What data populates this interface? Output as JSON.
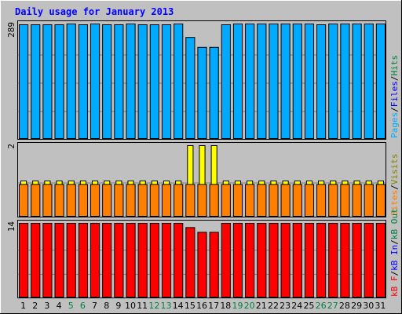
{
  "chart_data": {
    "type": "bar",
    "title": "Daily usage for January 2013",
    "categories": [
      "1",
      "2",
      "3",
      "4",
      "5",
      "6",
      "7",
      "8",
      "9",
      "10",
      "11",
      "12",
      "13",
      "14",
      "15",
      "16",
      "17",
      "18",
      "19",
      "20",
      "21",
      "22",
      "23",
      "24",
      "25",
      "26",
      "27",
      "28",
      "29",
      "30",
      "31"
    ],
    "weekend_days": [
      "5",
      "6",
      "12",
      "13",
      "19",
      "20",
      "26",
      "27"
    ],
    "panels": [
      {
        "id": "hits",
        "ymax_label": "289",
        "ymax": 289,
        "series": [
          {
            "name": "Hits",
            "color": "#00aaff",
            "values": [
              287,
              287,
              287,
              287,
              289,
              287,
              289,
              287,
              287,
              289,
              287,
              287,
              287,
              289,
              255,
              230,
              230,
              287,
              289,
              289,
              289,
              289,
              289,
              289,
              289,
              287,
              289,
              289,
              289,
              289,
              289
            ]
          }
        ],
        "legend": [
          {
            "text": "Pages",
            "color": "#00aaff"
          },
          {
            "text": "/",
            "color": "#000000"
          },
          {
            "text": "Files",
            "color": "#0000ff"
          },
          {
            "text": "/",
            "color": "#000000"
          },
          {
            "text": "Hits",
            "color": "#008040"
          }
        ]
      },
      {
        "id": "visits",
        "ymax_label": "2",
        "ymax": 2,
        "series": [
          {
            "name": "Visits",
            "color": "#ffff00",
            "values": [
              1,
              1,
              1,
              1,
              1,
              1,
              1,
              1,
              1,
              1,
              1,
              1,
              1,
              1,
              2,
              2,
              2,
              1,
              1,
              1,
              1,
              1,
              1,
              1,
              1,
              1,
              1,
              1,
              1,
              1,
              1
            ]
          },
          {
            "name": "Sites",
            "color": "#ff8000",
            "values": [
              1,
              1,
              1,
              1,
              1,
              1,
              1,
              1,
              1,
              1,
              1,
              1,
              1,
              1,
              1,
              1,
              1,
              1,
              1,
              1,
              1,
              1,
              1,
              1,
              1,
              1,
              1,
              1,
              1,
              1,
              1
            ]
          }
        ],
        "legend": [
          {
            "text": "Sites",
            "color": "#ff8000"
          },
          {
            "text": "/",
            "color": "#000000"
          },
          {
            "text": "Visits",
            "color": "#808000"
          }
        ]
      },
      {
        "id": "kbytes",
        "ymax_label": "14",
        "ymax": 14,
        "series": [
          {
            "name": "kB F",
            "color": "#ff0000",
            "values": [
              14,
              14,
              14,
              14,
              14,
              14,
              14,
              14,
              14,
              14,
              14,
              14,
              14,
              14,
              13.2,
              12.3,
              12.3,
              14,
              14,
              14,
              14,
              14,
              14,
              14,
              14,
              14,
              14,
              14,
              14,
              14,
              14
            ]
          }
        ],
        "legend": [
          {
            "text": "kB F",
            "color": "#ff0000"
          },
          {
            "text": "/",
            "color": "#000000"
          },
          {
            "text": "kB In",
            "color": "#0000ff"
          },
          {
            "text": "/",
            "color": "#000000"
          },
          {
            "text": "kB Out",
            "color": "#008040"
          }
        ]
      }
    ]
  },
  "colors": {
    "background": "#c0c0c0",
    "title": "#0000ff",
    "weekday_label": "#000000",
    "weekend_label": "#008040",
    "gridline": "#808080"
  }
}
